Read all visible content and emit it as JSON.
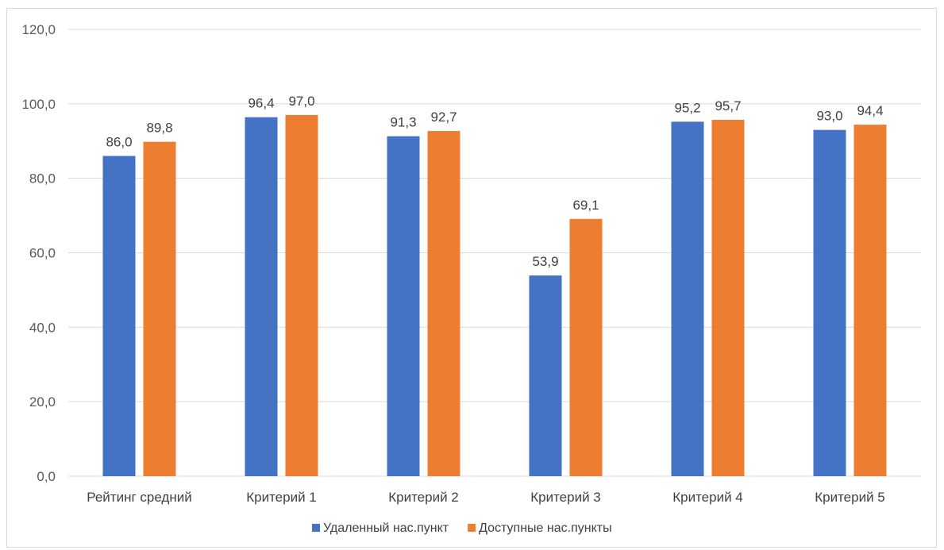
{
  "chart_data": {
    "type": "bar",
    "categories": [
      "Рейтинг средний",
      "Критерий 1",
      "Критерий 2",
      "Критерий 3",
      "Критерий 4",
      "Критерий 5"
    ],
    "series": [
      {
        "name": "Удаленный нас.пункт",
        "color": "#4472c4",
        "values": [
          86.0,
          96.4,
          91.3,
          53.9,
          95.2,
          93.0
        ],
        "labels": [
          "86,0",
          "96,4",
          "91,3",
          "53,9",
          "95,2",
          "93,0"
        ]
      },
      {
        "name": "Доступные нас.пункты",
        "color": "#ed7d31",
        "values": [
          89.8,
          97.0,
          92.7,
          69.1,
          95.7,
          94.4
        ],
        "labels": [
          "89,8",
          "97,0",
          "92,7",
          "69,1",
          "95,7",
          "94,4"
        ]
      }
    ],
    "yticks": [
      0,
      20,
      40,
      60,
      80,
      100,
      120
    ],
    "ytick_labels": [
      "0,0",
      "20,0",
      "40,0",
      "60,0",
      "80,0",
      "100,0",
      "120,0"
    ],
    "ylim": [
      0,
      120
    ],
    "grid": true,
    "legend_position": "bottom"
  }
}
